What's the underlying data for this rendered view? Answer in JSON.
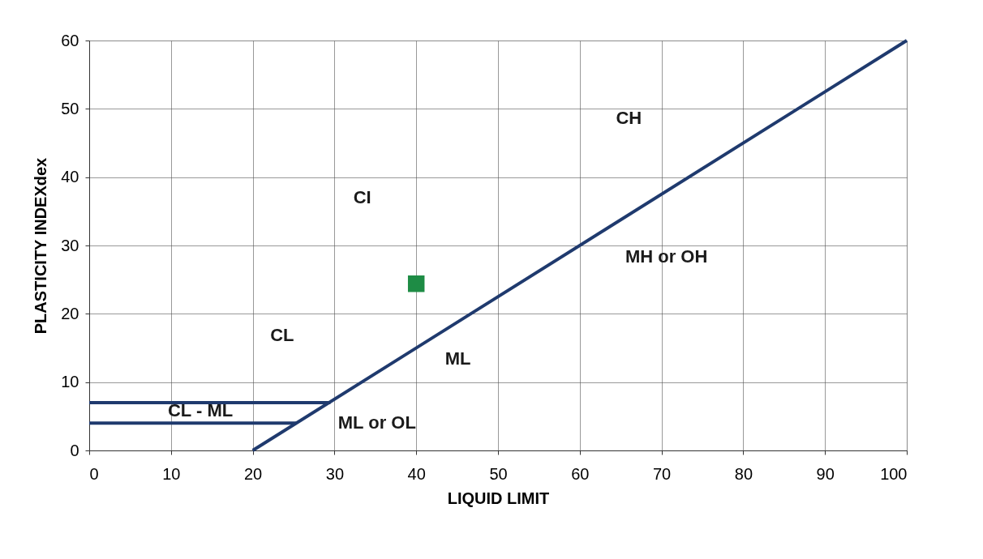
{
  "chart_data": {
    "type": "line",
    "xlabel": "LIQUID LIMIT",
    "ylabel": "PLASTICITY INDEXdex",
    "xlim": [
      0,
      100
    ],
    "xticks": [
      0,
      10,
      20,
      30,
      40,
      50,
      60,
      70,
      80,
      90,
      100
    ],
    "ylim": [
      0,
      60
    ],
    "yticks": [
      0,
      10,
      20,
      30,
      40,
      50,
      60
    ],
    "grid": true,
    "line_style": "solid",
    "series": [
      {
        "type": "line",
        "color": "#1f3a6e",
        "marker": "none",
        "x": [
          20,
          100
        ],
        "values": [
          0,
          60
        ]
      },
      {
        "type": "line",
        "color": "#1f3a6e",
        "marker": "none",
        "x": [
          0,
          29.5
        ],
        "values": [
          7,
          7
        ]
      },
      {
        "type": "line",
        "color": "#1f3a6e",
        "marker": "none",
        "x": [
          0,
          25.3
        ],
        "values": [
          4,
          4
        ]
      },
      {
        "type": "scatter",
        "color": "#1e8c45",
        "marker": "square",
        "x": [
          40
        ],
        "values": [
          24.4
        ]
      }
    ],
    "annotations": [
      "CH",
      "CI",
      "MH or OH",
      "CL",
      "ML",
      "CL - ML",
      "ML or OL"
    ]
  }
}
